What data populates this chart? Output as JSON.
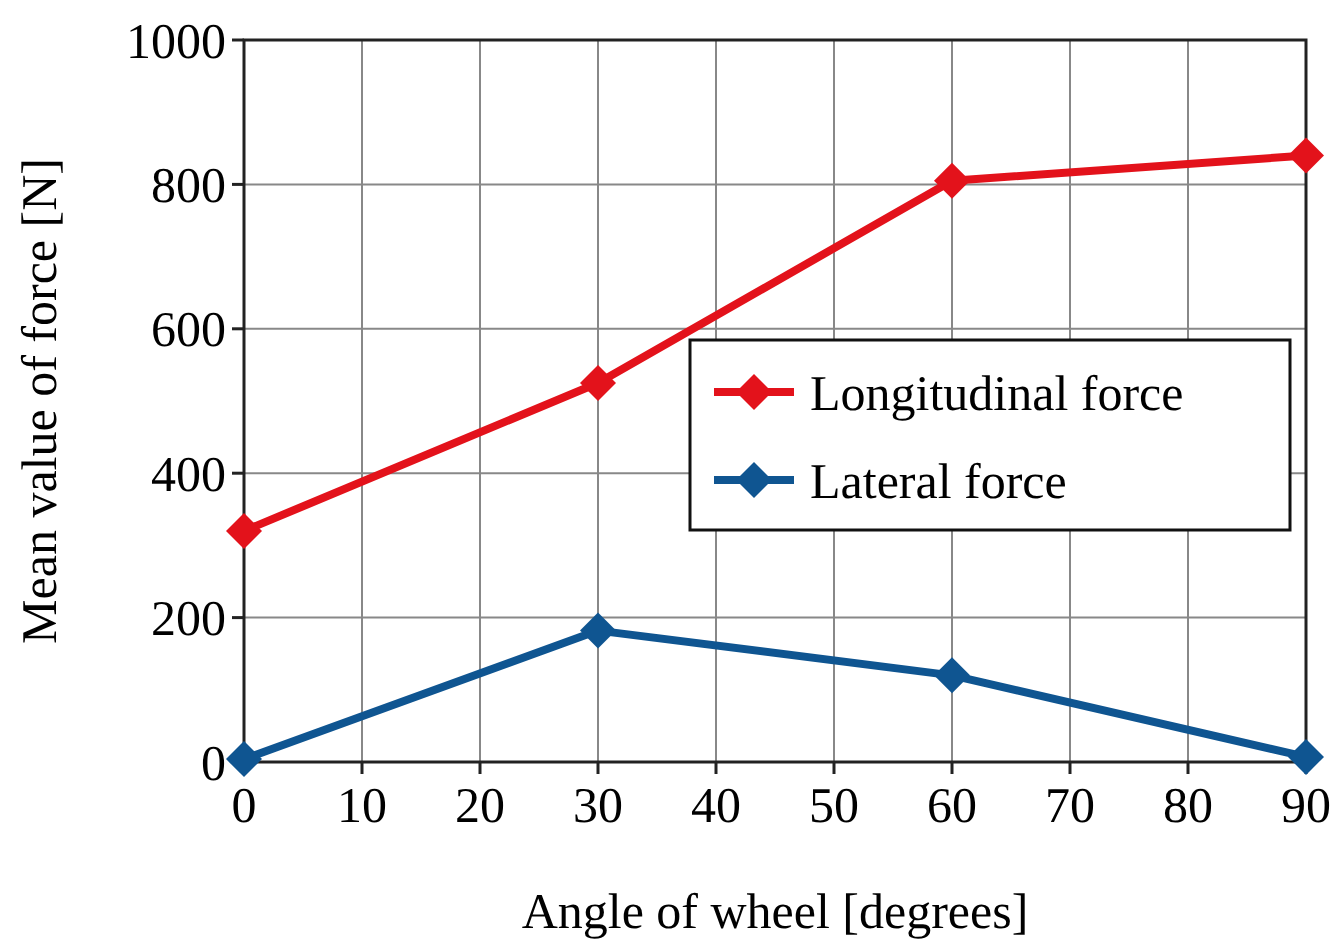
{
  "chart_data": {
    "type": "line",
    "xlabel": "Angle of wheel [degrees]",
    "ylabel": "Mean value of force [N]",
    "x": [
      0,
      30,
      60,
      90
    ],
    "series": [
      {
        "name": "Longitudinal force",
        "color": "#e3121b",
        "values": [
          320,
          525,
          805,
          840
        ]
      },
      {
        "name": "Lateral force",
        "color": "#0f5591",
        "values": [
          4,
          182,
          120,
          7
        ]
      }
    ],
    "xlim": [
      0,
      90
    ],
    "xticks": [
      0,
      10,
      20,
      30,
      40,
      50,
      60,
      70,
      80,
      90
    ],
    "ylim": [
      0,
      1000
    ],
    "yticks": [
      0,
      200,
      400,
      600,
      800,
      1000
    ],
    "grid": true,
    "legend": "right",
    "marker": "diamond",
    "line_style": "solid"
  }
}
